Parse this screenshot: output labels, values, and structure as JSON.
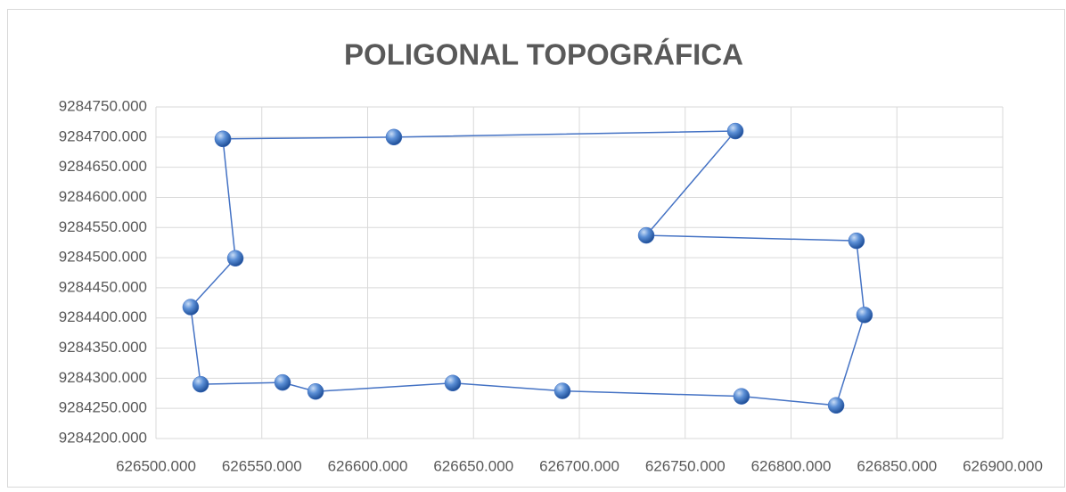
{
  "chart_data": {
    "type": "scatter-line",
    "title": "POLIGONAL TOPOGRÁFICA",
    "x": [
      626531.6,
      626612.4,
      626773.7,
      626731.6,
      626830.9,
      626834.7,
      626821.3,
      626776.6,
      626692.0,
      626640.2,
      626575.4,
      626559.8,
      626521.1,
      626516.4,
      626537.5,
      626531.6
    ],
    "series": [
      {
        "color": "#4472c4",
        "values": [
          9284697,
          9284700,
          9284710,
          9284537,
          9284528,
          9284405,
          9284255,
          9284270,
          9284279,
          9284292,
          9284278,
          9284293,
          9284290,
          9284418,
          9284499,
          9284697
        ]
      }
    ],
    "xlim": [
      626500,
      626900
    ],
    "xticks": [
      {
        "value": 626500,
        "label": "626500.000"
      },
      {
        "value": 626550,
        "label": "626550.000"
      },
      {
        "value": 626600,
        "label": "626600.000"
      },
      {
        "value": 626650,
        "label": "626650.000"
      },
      {
        "value": 626700,
        "label": "626700.000"
      },
      {
        "value": 626750,
        "label": "626750.000"
      },
      {
        "value": 626800,
        "label": "626800.000"
      },
      {
        "value": 626850,
        "label": "626850.000"
      },
      {
        "value": 626900,
        "label": "626900.000"
      }
    ],
    "ylim": [
      9284200,
      9284750
    ],
    "yticks": [
      {
        "value": 9284200,
        "label": "9284200.000"
      },
      {
        "value": 9284250,
        "label": "9284250.000"
      },
      {
        "value": 9284300,
        "label": "9284300.000"
      },
      {
        "value": 9284350,
        "label": "9284350.000"
      },
      {
        "value": 9284400,
        "label": "9284400.000"
      },
      {
        "value": 9284450,
        "label": "9284450.000"
      },
      {
        "value": 9284500,
        "label": "9284500.000"
      },
      {
        "value": 9284550,
        "label": "9284550.000"
      },
      {
        "value": 9284600,
        "label": "9284600.000"
      },
      {
        "value": 9284650,
        "label": "9284650.000"
      },
      {
        "value": 9284700,
        "label": "9284700.000"
      },
      {
        "value": 9284750,
        "label": "9284750.000"
      }
    ],
    "grid": true
  }
}
